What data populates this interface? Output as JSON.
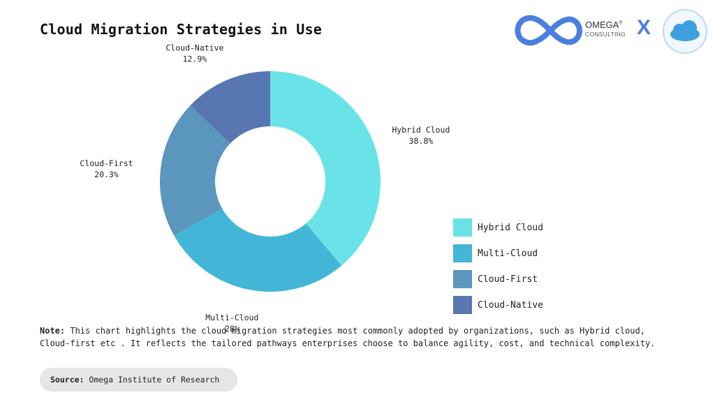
{
  "chart_data": {
    "type": "pie",
    "title": "Cloud Migration Strategies in Use",
    "categories": [
      "Hybrid Cloud",
      "Multi-Cloud",
      "Cloud-First",
      "Cloud-Native"
    ],
    "values": [
      38.8,
      28,
      20.3,
      12.9
    ],
    "value_labels": [
      "38.8%",
      "28%",
      "20.3%",
      "12.9%"
    ],
    "colors": [
      "#69e3e8",
      "#43b6d7",
      "#5a96bd",
      "#5876b2"
    ],
    "donut": true,
    "legend_position": "right"
  },
  "brand": {
    "name": "OMEGA",
    "registered": "®",
    "sub": "CONSULTING",
    "separator": "X",
    "infinity_color": "#4a7fe0",
    "cloud_color": "#3f9fdf"
  },
  "note": {
    "prefix": "Note:",
    "text": "This chart highlights the cloud migration strategies most commonly adopted by organizations, such as Hybrid cloud, Cloud-first etc . It reflects the tailored pathways enterprises choose to balance agility, cost, and technical complexity."
  },
  "source": {
    "prefix": "Source:",
    "text": "Omega Institute of Research"
  }
}
